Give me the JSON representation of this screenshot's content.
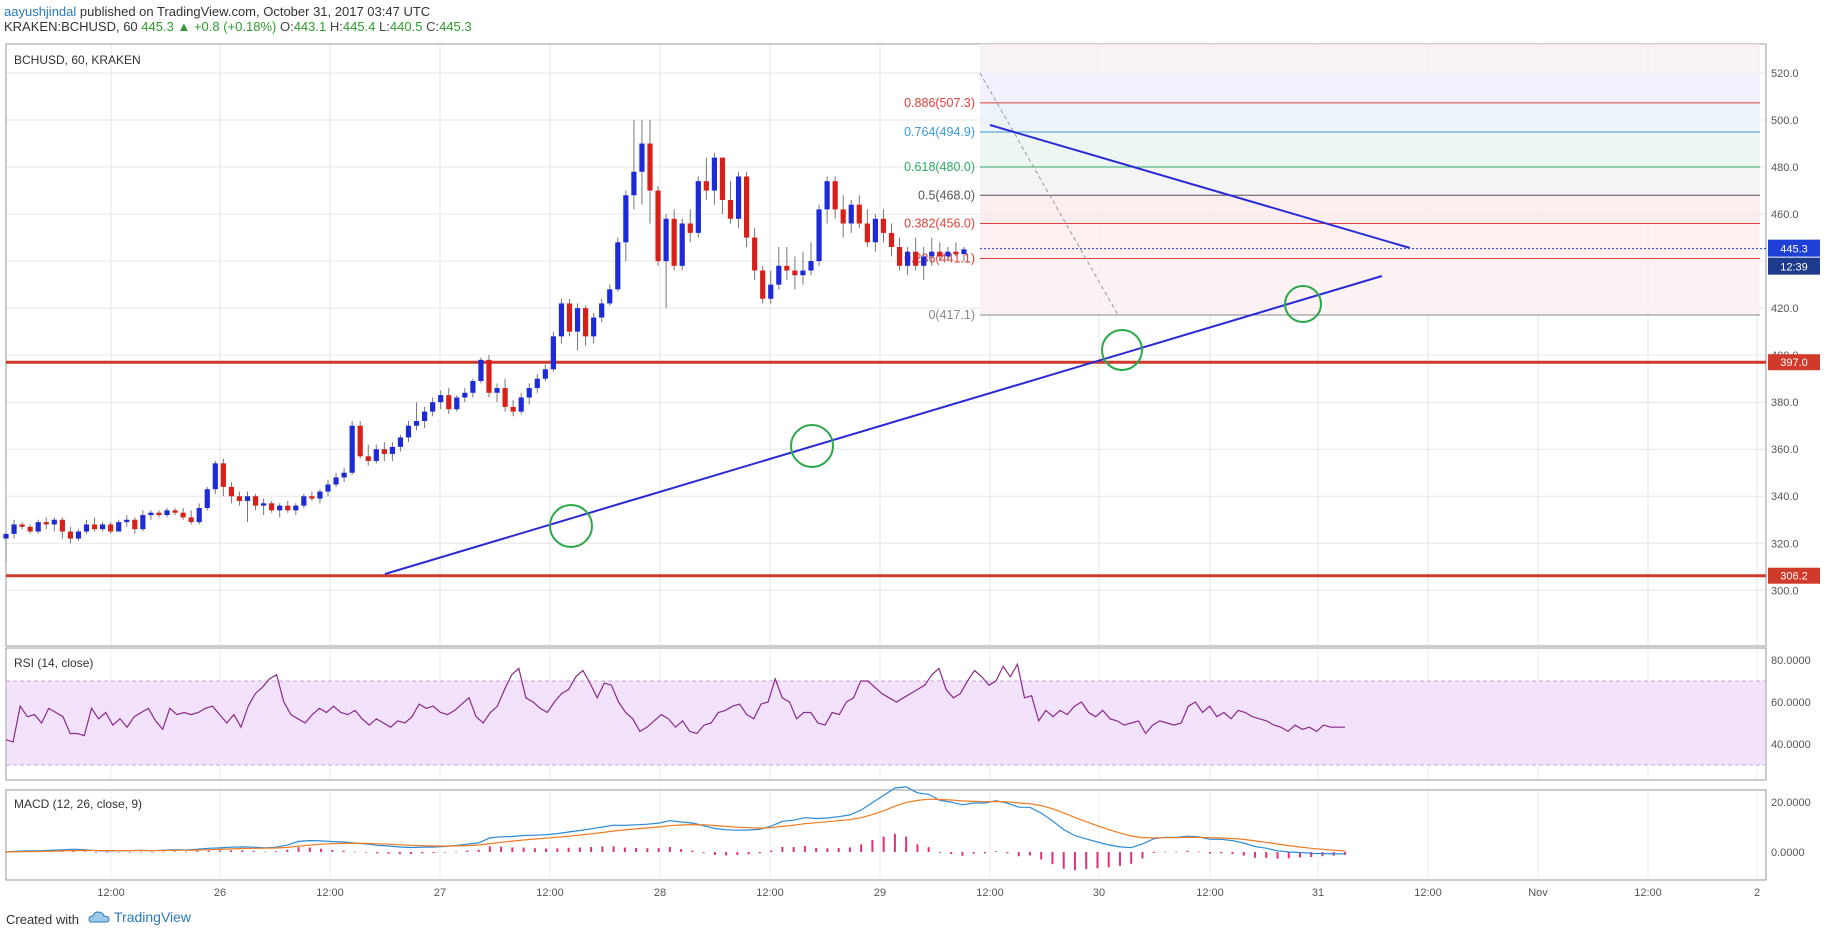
{
  "header": {
    "author": "aayushjindal",
    "published": "published on TradingView.com, October 31, 2017 03:47 UTC",
    "symbol": "KRAKEN:BCHUSD, 60",
    "last": "445.3",
    "change": "+0.8 (+0.18%)",
    "o_label": "O:",
    "o": "443.1",
    "h_label": "H:",
    "h": "445.4",
    "l_label": "L:",
    "l": "440.5",
    "c_label": "C:",
    "c": "445.3"
  },
  "chart_data": {
    "type": "candlestick",
    "title": "BCHUSD, 60, KRAKEN",
    "price_axis": {
      "ticks": [
        520,
        500,
        480,
        460,
        440,
        420,
        400,
        380,
        360,
        340,
        320,
        300
      ],
      "labels": [
        "520.0",
        "500.0",
        "480.0",
        "460.0",
        "440.0",
        "420.0",
        "400.0",
        "380.0",
        "360.0",
        "340.0",
        "320.0",
        "300.0"
      ],
      "ylim": [
        300,
        520
      ]
    },
    "time_axis": {
      "labels": [
        "12:00",
        "26",
        "12:00",
        "27",
        "12:00",
        "28",
        "12:00",
        "29",
        "12:00",
        "30",
        "12:00",
        "31",
        "12:00",
        "Nov",
        "12:00",
        "2"
      ]
    },
    "last_price": {
      "value": 445.3,
      "label": "445.3",
      "countdown": "12:39",
      "color": "#1e3fd6"
    },
    "horizontal_levels": [
      {
        "value": 397.0,
        "label": "397.0",
        "color": "#d03a2a"
      },
      {
        "value": 306.2,
        "label": "306.2",
        "color": "#d03a2a"
      }
    ],
    "fibonacci": [
      {
        "ratio": "0.886",
        "price": "507.3",
        "value": 507.3,
        "color": "#e0403a"
      },
      {
        "ratio": "0.764",
        "price": "494.9",
        "value": 494.9,
        "color": "#3a9ad9"
      },
      {
        "ratio": "0.618",
        "price": "480.0",
        "value": 480.0,
        "color": "#2eaa6a"
      },
      {
        "ratio": "0.5",
        "price": "468.0",
        "value": 468.0,
        "color": "#555555"
      },
      {
        "ratio": "0.382",
        "price": "456.0",
        "value": 456.0,
        "color": "#e0403a"
      },
      {
        "ratio": "0.236",
        "price": "441.1",
        "value": 441.1,
        "color": "#e0403a"
      },
      {
        "ratio": "0",
        "price": "417.1",
        "value": 417.1,
        "color": "#888888"
      }
    ],
    "candles": [
      [
        322,
        325,
        312,
        324
      ],
      [
        324,
        330,
        322,
        328
      ],
      [
        328,
        329,
        326,
        327
      ],
      [
        327,
        328,
        324,
        325
      ],
      [
        325,
        330,
        324,
        329
      ],
      [
        329,
        331,
        326,
        328
      ],
      [
        328,
        331,
        325,
        330
      ],
      [
        330,
        331,
        322,
        325
      ],
      [
        325,
        327,
        320,
        322
      ],
      [
        322,
        326,
        321,
        325
      ],
      [
        325,
        330,
        324,
        328
      ],
      [
        328,
        331,
        325,
        326
      ],
      [
        326,
        329,
        325,
        328
      ],
      [
        328,
        329,
        324,
        325
      ],
      [
        325,
        330,
        325,
        329
      ],
      [
        329,
        332,
        327,
        330
      ],
      [
        330,
        331,
        324,
        326
      ],
      [
        326,
        334,
        325,
        332
      ],
      [
        332,
        334,
        330,
        333
      ],
      [
        333,
        334,
        331,
        332
      ],
      [
        332,
        335,
        331,
        334
      ],
      [
        334,
        335,
        332,
        333
      ],
      [
        333,
        335,
        330,
        331
      ],
      [
        331,
        334,
        328,
        329
      ],
      [
        329,
        337,
        328,
        335
      ],
      [
        335,
        344,
        334,
        343
      ],
      [
        343,
        355,
        341,
        354
      ],
      [
        354,
        356,
        340,
        344
      ],
      [
        344,
        346,
        337,
        340
      ],
      [
        340,
        342,
        336,
        338
      ],
      [
        338,
        342,
        329,
        340
      ],
      [
        340,
        341,
        334,
        336
      ],
      [
        336,
        339,
        332,
        337
      ],
      [
        337,
        338,
        333,
        334
      ],
      [
        334,
        337,
        331,
        336
      ],
      [
        336,
        338,
        333,
        334
      ],
      [
        334,
        337,
        332,
        336
      ],
      [
        336,
        341,
        335,
        340
      ],
      [
        340,
        342,
        338,
        339
      ],
      [
        339,
        343,
        337,
        342
      ],
      [
        342,
        347,
        340,
        345
      ],
      [
        345,
        350,
        344,
        348
      ],
      [
        348,
        352,
        346,
        350
      ],
      [
        350,
        372,
        349,
        370
      ],
      [
        370,
        372,
        356,
        357
      ],
      [
        357,
        362,
        353,
        355
      ],
      [
        355,
        362,
        354,
        360
      ],
      [
        360,
        363,
        355,
        358
      ],
      [
        358,
        363,
        355,
        361
      ],
      [
        361,
        366,
        359,
        365
      ],
      [
        365,
        372,
        363,
        370
      ],
      [
        370,
        380,
        368,
        372
      ],
      [
        372,
        378,
        369,
        376
      ],
      [
        376,
        382,
        374,
        380
      ],
      [
        380,
        385,
        377,
        383
      ],
      [
        383,
        386,
        375,
        377
      ],
      [
        377,
        383,
        376,
        382
      ],
      [
        382,
        386,
        380,
        384
      ],
      [
        384,
        390,
        382,
        389
      ],
      [
        389,
        399,
        388,
        398
      ],
      [
        398,
        400,
        382,
        384
      ],
      [
        384,
        388,
        380,
        386
      ],
      [
        386,
        390,
        376,
        378
      ],
      [
        378,
        381,
        374,
        376
      ],
      [
        376,
        384,
        375,
        382
      ],
      [
        382,
        388,
        379,
        386
      ],
      [
        386,
        392,
        384,
        390
      ],
      [
        390,
        396,
        389,
        394
      ],
      [
        394,
        410,
        393,
        408
      ],
      [
        408,
        424,
        405,
        422
      ],
      [
        422,
        424,
        408,
        410
      ],
      [
        410,
        422,
        402,
        420
      ],
      [
        420,
        421,
        404,
        408
      ],
      [
        408,
        418,
        405,
        416
      ],
      [
        416,
        424,
        414,
        422
      ],
      [
        422,
        430,
        421,
        428
      ],
      [
        428,
        450,
        427,
        448
      ],
      [
        448,
        470,
        440,
        468
      ],
      [
        468,
        500,
        462,
        478
      ],
      [
        478,
        500,
        464,
        490
      ],
      [
        490,
        500,
        456,
        470
      ],
      [
        470,
        472,
        438,
        440
      ],
      [
        440,
        460,
        420,
        458
      ],
      [
        458,
        462,
        436,
        438
      ],
      [
        438,
        458,
        436,
        456
      ],
      [
        456,
        462,
        448,
        452
      ],
      [
        452,
        476,
        450,
        474
      ],
      [
        474,
        484,
        466,
        470
      ],
      [
        470,
        486,
        464,
        484
      ],
      [
        484,
        484,
        460,
        466
      ],
      [
        466,
        474,
        456,
        458
      ],
      [
        458,
        478,
        454,
        476
      ],
      [
        476,
        478,
        446,
        450
      ],
      [
        450,
        454,
        432,
        436
      ],
      [
        436,
        438,
        422,
        424
      ],
      [
        424,
        436,
        422,
        430
      ],
      [
        430,
        446,
        428,
        438
      ],
      [
        438,
        446,
        432,
        436
      ],
      [
        436,
        442,
        428,
        434
      ],
      [
        434,
        444,
        430,
        436
      ],
      [
        436,
        448,
        434,
        440
      ],
      [
        440,
        464,
        438,
        462
      ],
      [
        462,
        476,
        456,
        474
      ],
      [
        474,
        476,
        458,
        462
      ],
      [
        462,
        468,
        450,
        456
      ],
      [
        456,
        466,
        452,
        464
      ],
      [
        464,
        468,
        454,
        456
      ],
      [
        456,
        462,
        446,
        448
      ],
      [
        448,
        460,
        444,
        458
      ],
      [
        458,
        462,
        448,
        452
      ],
      [
        452,
        456,
        442,
        446
      ],
      [
        446,
        450,
        436,
        438
      ],
      [
        438,
        446,
        434,
        444
      ],
      [
        444,
        450,
        436,
        438
      ],
      [
        438,
        446,
        432,
        442
      ],
      [
        442,
        450,
        438,
        444
      ],
      [
        444,
        448,
        440,
        442
      ],
      [
        442,
        446,
        440,
        444
      ],
      [
        444,
        448,
        442,
        443
      ],
      [
        443,
        446,
        440,
        445
      ]
    ],
    "trendlines": [
      {
        "name": "ascending support",
        "color": "#2a2ad6"
      },
      {
        "name": "descending resistance",
        "color": "#2a2ad6"
      }
    ],
    "rsi": {
      "title": "RSI (14, close)",
      "axis_labels": [
        "80.0000",
        "60.0000",
        "40.0000"
      ],
      "bands": [
        70,
        30
      ],
      "values": [
        42,
        41,
        58,
        53,
        54,
        50,
        57,
        55,
        53,
        45,
        45,
        44,
        57,
        52,
        55,
        49,
        52,
        48,
        53,
        55,
        57,
        51,
        47,
        57,
        54,
        55,
        54,
        55,
        57,
        58,
        54,
        50,
        54,
        48,
        58,
        64,
        67,
        71,
        73,
        60,
        54,
        52,
        50,
        54,
        57,
        55,
        58,
        55,
        54,
        56,
        52,
        49,
        52,
        50,
        48,
        51,
        50,
        53,
        59,
        57,
        58,
        55,
        54,
        56,
        59,
        62,
        53,
        50,
        55,
        58,
        66,
        73,
        76,
        62,
        60,
        57,
        55,
        60,
        64,
        66,
        72,
        75,
        69,
        62,
        69,
        68,
        60,
        55,
        52,
        46,
        48,
        51,
        54,
        52,
        48,
        51,
        46,
        45,
        49,
        50,
        55,
        56,
        58,
        59,
        54,
        52,
        59,
        60,
        71,
        62,
        60,
        52,
        55,
        55,
        50,
        49,
        55,
        54,
        60,
        62,
        70,
        70,
        67,
        64,
        62,
        60,
        62,
        64,
        66,
        68,
        73,
        76,
        66,
        62,
        64,
        70,
        75,
        72,
        68,
        70,
        77,
        72,
        78,
        62,
        63,
        51,
        56,
        53,
        56,
        54,
        58,
        60,
        55,
        53,
        56,
        52,
        51,
        49,
        50,
        51,
        45,
        49,
        51,
        50,
        49,
        50,
        58,
        60,
        55,
        58,
        53,
        55,
        52,
        56,
        55,
        53,
        52,
        51,
        49,
        48,
        46,
        49,
        47,
        48,
        46,
        49,
        48,
        48,
        48
      ]
    },
    "macd": {
      "title": "MACD (12, 26, close, 9)",
      "axis_labels": [
        "20.0000",
        "0.0000"
      ],
      "macd_color": "#2a8ad6",
      "signal_color": "#f07a20",
      "histogram_color": "#e0307a"
    },
    "grid": true
  },
  "footer": {
    "created": "Created with",
    "brand": "TradingView"
  },
  "colors": {
    "up": "#1e2ad6",
    "down": "#d7201a",
    "wick": "#777777",
    "rsi_line": "#8a2a8a",
    "rsi_fill": "#f3e2fb"
  }
}
